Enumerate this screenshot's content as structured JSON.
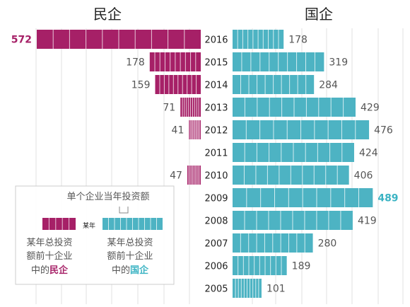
{
  "titles": {
    "private": "民企",
    "state": "国企"
  },
  "colors": {
    "private": "#a62067",
    "state": "#4db3c3",
    "grid": "#e2e2e2",
    "state_text_highlight": "#3ab3c3"
  },
  "chart_data": {
    "type": "bar",
    "layout": "back-to-back horizontal bars",
    "categories": [
      "2016",
      "2015",
      "2014",
      "2013",
      "2012",
      "2011",
      "2010",
      "2009",
      "2008",
      "2007",
      "2006",
      "2005"
    ],
    "series": [
      {
        "name": "民企",
        "values": [
          572,
          178,
          159,
          71,
          41,
          0,
          47,
          0,
          0,
          0,
          0,
          0
        ],
        "labels": [
          "572",
          "178",
          "159",
          "71",
          "41",
          "",
          "47",
          "",
          "",
          "",
          "",
          ""
        ],
        "highlight_index": 0
      },
      {
        "name": "国企",
        "values": [
          178,
          319,
          284,
          429,
          476,
          424,
          406,
          489,
          419,
          280,
          189,
          101
        ],
        "labels": [
          "178",
          "319",
          "284",
          "429",
          "476",
          "424",
          "406",
          "489",
          "419",
          "280",
          "189",
          "101"
        ],
        "highlight_index": 7
      }
    ],
    "note": "Each bar is split into ten segments, one per company in that year's top-10 by investment amount.",
    "grid": true
  },
  "legend": {
    "segment_caption": "单个企业当年投资额",
    "year_marker": "某年",
    "private_text": {
      "line1": "某年总投资",
      "line2": "额前十企业",
      "prefix": "中的",
      "emph": "民企"
    },
    "state_text": {
      "line1": "某年总投资",
      "line2": "额前十企业",
      "prefix": "中的",
      "emph": "国企"
    }
  }
}
